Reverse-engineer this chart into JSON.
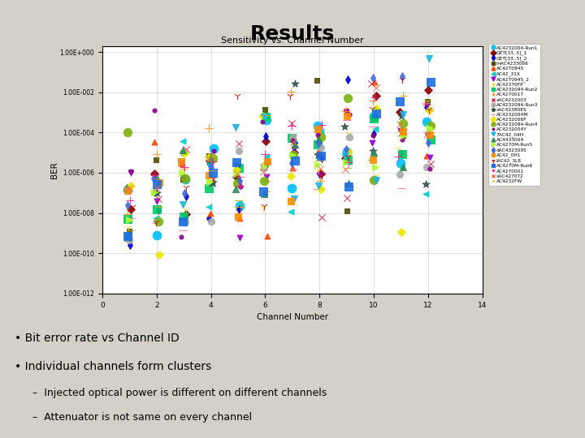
{
  "title": "Sensitivity vs. Channel Number",
  "xlabel": "Channel Number",
  "ylabel": "BER",
  "xlim": [
    0,
    14
  ],
  "yticks": [
    1.0,
    0.01,
    0.0001,
    1e-06,
    1e-08,
    1e-10,
    1e-12
  ],
  "ytick_labels": [
    "1.00E+000",
    "1.00E-002",
    "1.00E-004",
    "1.00E-006",
    "1.00E-008",
    "1.00E-010",
    "1.00E-012"
  ],
  "xticks": [
    0,
    2,
    4,
    6,
    8,
    10,
    12,
    14
  ],
  "channel_positions": [
    1,
    2,
    3,
    4,
    5,
    6,
    7,
    8,
    9,
    10,
    11,
    12
  ],
  "outer_bg": "#d4d0c8",
  "panel_bg": "#ffffff",
  "series": [
    {
      "label": "AC4232004-Run1",
      "color": "#00bfff",
      "marker": "o",
      "size": 60
    },
    {
      "label": "GET[33..5]_1",
      "color": "#8b0000",
      "marker": "D",
      "size": 25
    },
    {
      "label": "GET[33..5]_2",
      "color": "#0000cd",
      "marker": "d",
      "size": 25
    },
    {
      "label": "mAC4233006",
      "color": "#4d4d00",
      "marker": "s",
      "size": 25
    },
    {
      "label": "AC4270945",
      "color": "#ff4500",
      "marker": "^",
      "size": 25
    },
    {
      "label": "AC42_31X",
      "color": "#00ced1",
      "marker": "<",
      "size": 25
    },
    {
      "label": "AC4270945_2",
      "color": "#9400d3",
      "marker": "v",
      "size": 25
    },
    {
      "label": "AC42370FP",
      "color": "#ffd700",
      "marker": "1",
      "size": 35
    },
    {
      "label": "AC4232094-Run2",
      "color": "#00cc66",
      "marker": "s",
      "size": 45
    },
    {
      "label": "AC4270017",
      "color": "#ff8c00",
      "marker": "+",
      "size": 45
    },
    {
      "label": "xAC4232003",
      "color": "#dc143c",
      "marker": "x",
      "size": 35
    },
    {
      "label": "AC4232094-Run3",
      "color": "#aaaaaa",
      "marker": "o",
      "size": 35
    },
    {
      "label": "xAC42380ES",
      "color": "#2f4f4f",
      "marker": "*",
      "size": 45
    },
    {
      "label": "AC4232004M",
      "color": "#ff69b4",
      "marker": "_",
      "size": 45
    },
    {
      "label": "AC4232006F",
      "color": "#e8e800",
      "marker": "D",
      "size": 25
    },
    {
      "label": "AC4232094-Run4",
      "color": "#7db210",
      "marker": "o",
      "size": 55
    },
    {
      "label": "AC4232004Y",
      "color": "#8b008b",
      "marker": ".",
      "size": 55
    },
    {
      "label": "7AC42_04H",
      "color": "#1eb4e8",
      "marker": "v",
      "size": 35
    },
    {
      "label": "AC4433004",
      "color": "#2e8b57",
      "marker": "^",
      "size": 35
    },
    {
      "label": "AC4270M-Run5",
      "color": "#adff2f",
      "marker": ">",
      "size": 35
    },
    {
      "label": "dAC4323095",
      "color": "#4169e1",
      "marker": "d",
      "size": 25
    },
    {
      "label": "AC42_0H1",
      "color": "#ff8c00",
      "marker": "s",
      "size": 35
    },
    {
      "label": "IAC42_3L8",
      "color": "#cc0000",
      "marker": "1",
      "size": 45
    },
    {
      "label": "AC4270M-Run6",
      "color": "#1e6fdf",
      "marker": "s",
      "size": 55
    },
    {
      "label": "AC4270001",
      "color": "#ff1493",
      "marker": "+",
      "size": 45
    },
    {
      "label": "xAC4270T2",
      "color": "#ff6347",
      "marker": "x",
      "size": 35
    },
    {
      "label": "AC4232FW",
      "color": "#daa520",
      "marker": "_",
      "size": 45
    }
  ],
  "slide_title": "Results",
  "bullet1": "Bit error rate vs Channel ID",
  "bullet2": "Individual channels form clusters",
  "sub1": "Injected optical power is different on different channels",
  "sub2": "Attenuator is not same on every channel"
}
